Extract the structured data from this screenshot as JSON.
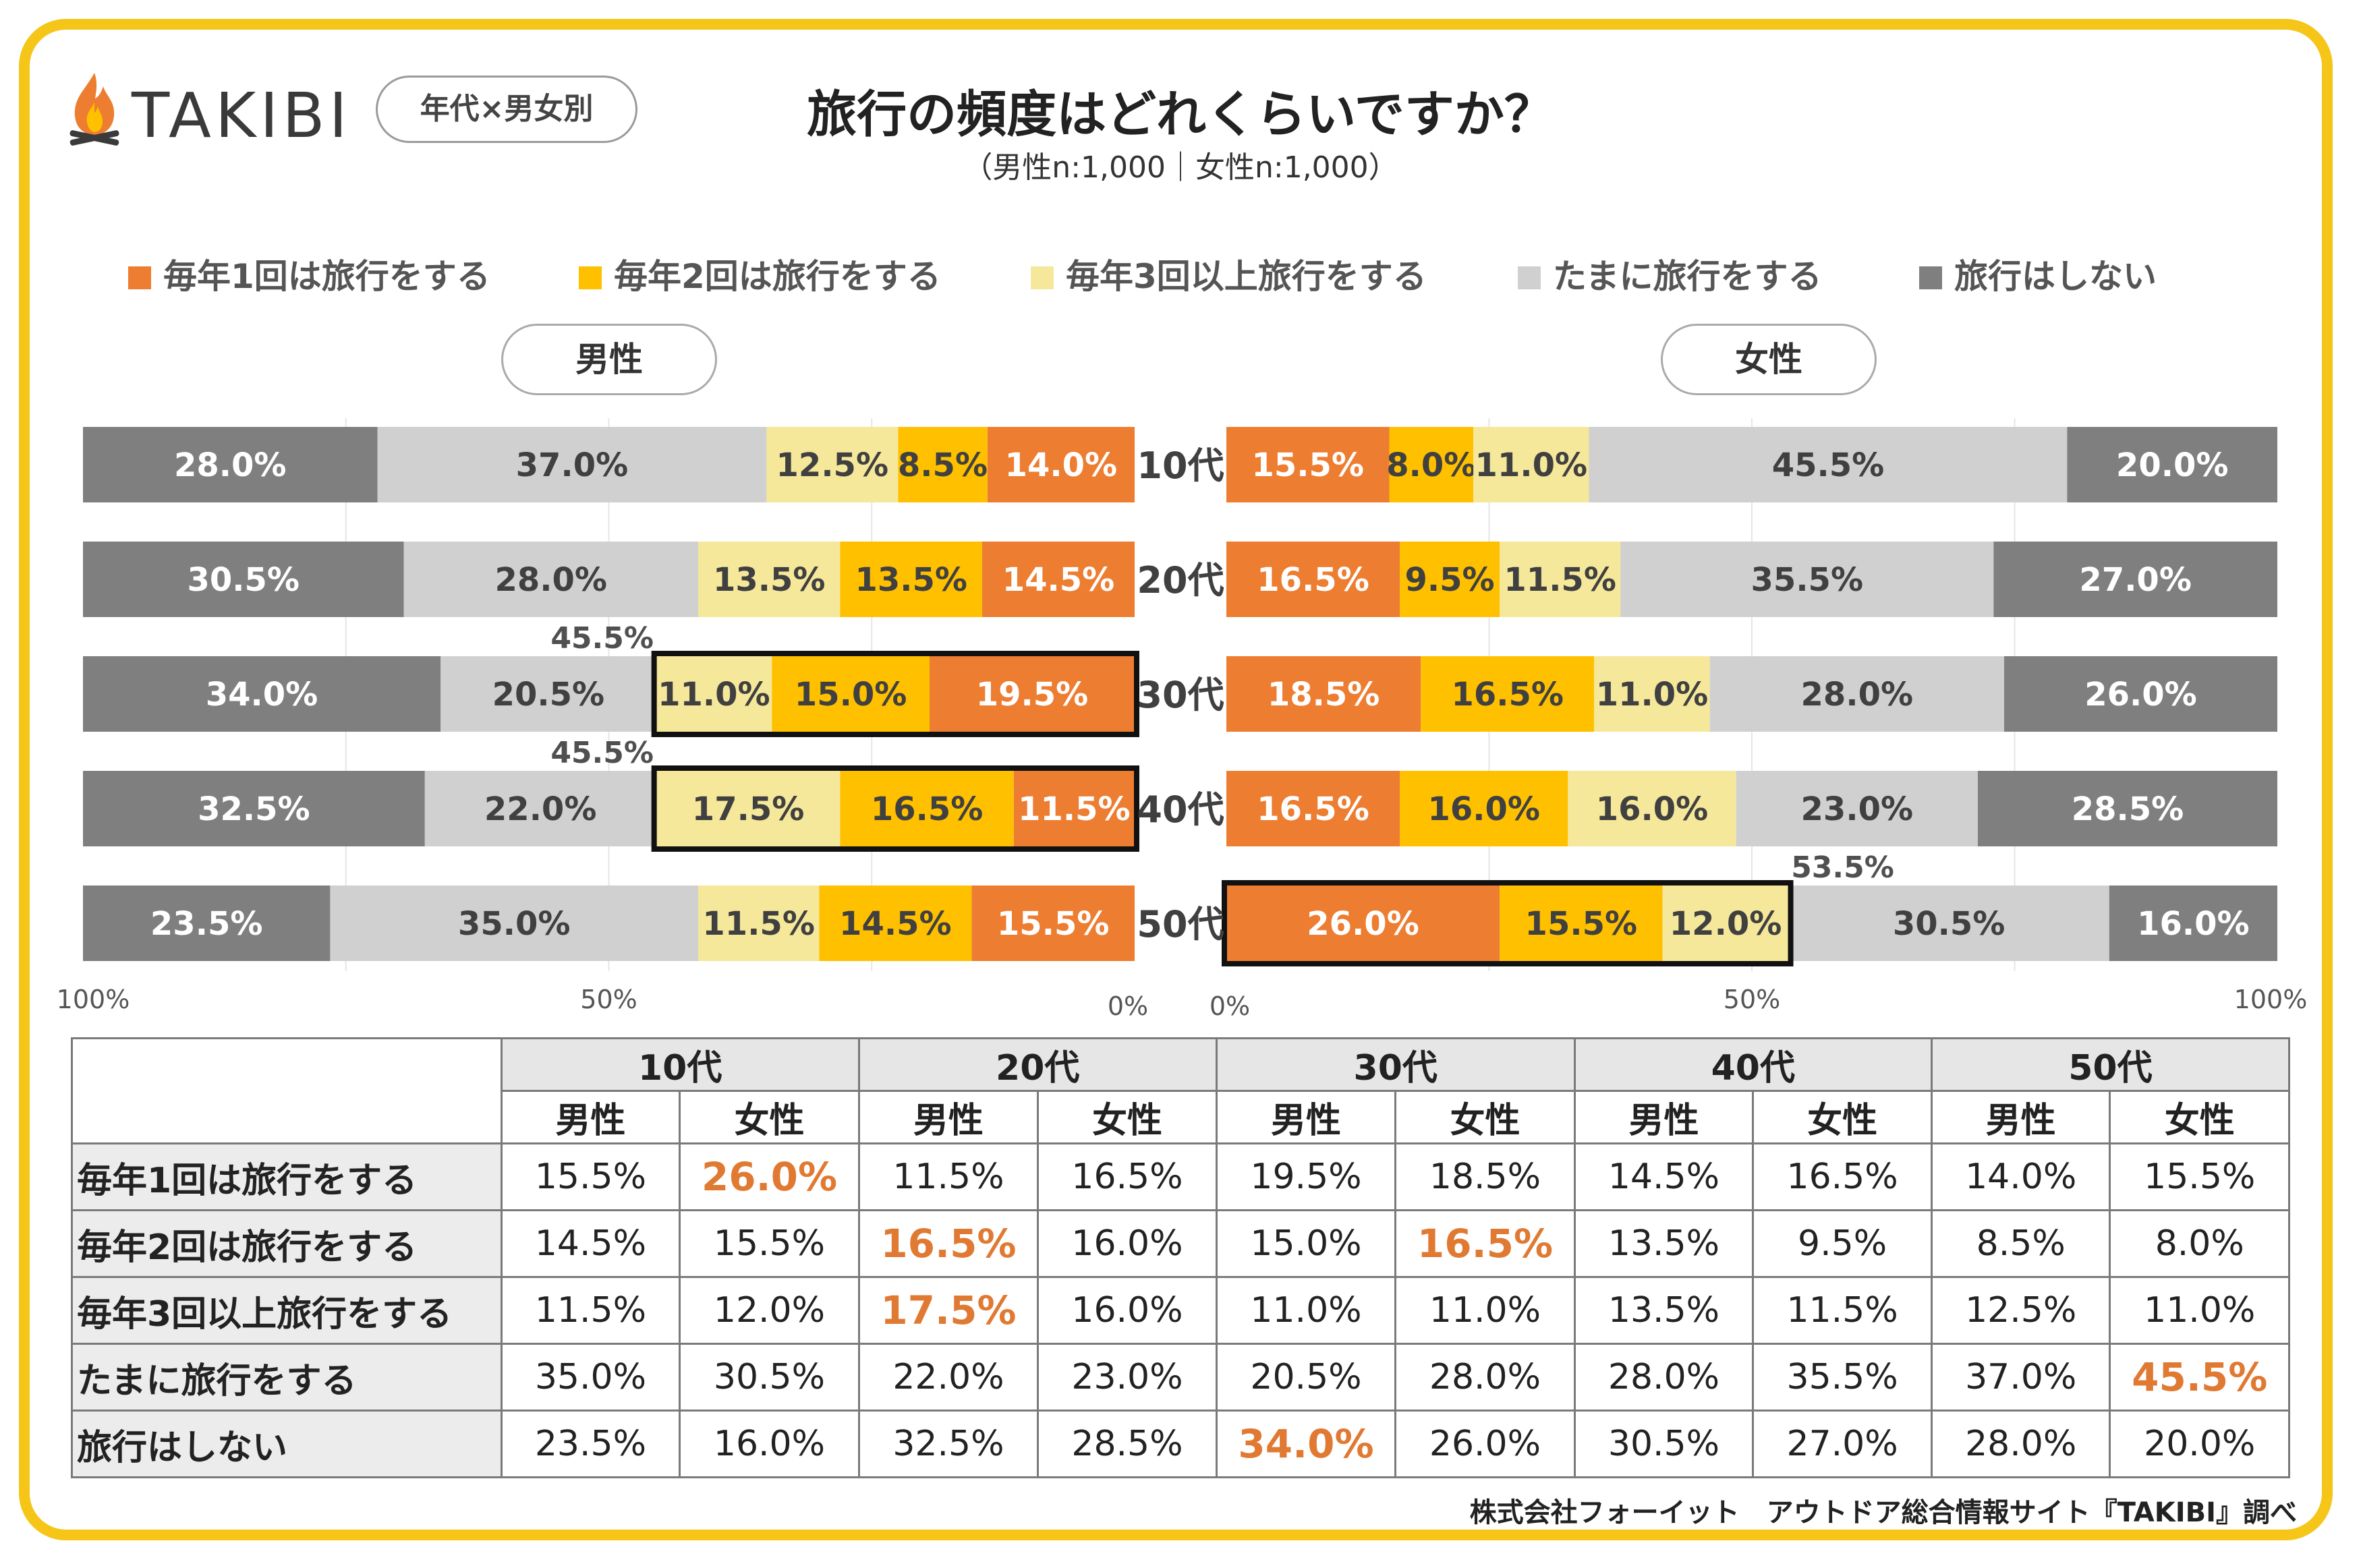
{
  "logo": {
    "text": "TAKIBI",
    "icon": "campfire-icon"
  },
  "tag": "年代×男女別",
  "title": "旅行の頻度はどれくらいですか？",
  "subtitle": "（男性n:1,000｜女性n:1,000）",
  "colors": {
    "c1": "#ED7D31",
    "c2": "#FFC000",
    "c3": "#F5E89A",
    "c4": "#D0D0D0",
    "c5": "#7F7F7F",
    "highlight_text": "#E07A33",
    "frame": "#F5C518"
  },
  "chart_data": {
    "type": "bar",
    "orientation": "horizontal-stacked-diverging",
    "title": "旅行の頻度はどれくらいですか？",
    "categories": [
      "10代",
      "20代",
      "30代",
      "40代",
      "50代"
    ],
    "legend": [
      "毎年1回は旅行をする",
      "毎年2回は旅行をする",
      "毎年3回以上旅行をする",
      "たまに旅行をする",
      "旅行はしない"
    ],
    "panels": [
      {
        "name": "男性",
        "axis_labels": [
          "100%",
          "50%",
          "0%"
        ],
        "series": [
          {
            "name": "毎年1回は旅行をする",
            "values": [
              14.0,
              14.5,
              19.5,
              11.5,
              15.5
            ]
          },
          {
            "name": "毎年2回は旅行をする",
            "values": [
              8.5,
              13.5,
              15.0,
              16.5,
              14.5
            ]
          },
          {
            "name": "毎年3回以上旅行をする",
            "values": [
              12.5,
              13.5,
              11.0,
              17.5,
              11.5
            ]
          },
          {
            "name": "たまに旅行をする",
            "values": [
              37.0,
              28.0,
              20.5,
              22.0,
              35.0
            ]
          },
          {
            "name": "旅行はしない",
            "values": [
              28.0,
              30.5,
              34.0,
              32.5,
              23.5
            ]
          }
        ],
        "highlights": [
          {
            "category": "30代",
            "label": "45.5%"
          },
          {
            "category": "40代",
            "label": "45.5%"
          }
        ]
      },
      {
        "name": "女性",
        "axis_labels": [
          "0%",
          "50%",
          "100%"
        ],
        "series": [
          {
            "name": "毎年1回は旅行をする",
            "values": [
              15.5,
              16.5,
              18.5,
              16.5,
              26.0
            ]
          },
          {
            "name": "毎年2回は旅行をする",
            "values": [
              8.0,
              9.5,
              16.5,
              16.0,
              15.5
            ]
          },
          {
            "name": "毎年3回以上旅行をする",
            "values": [
              11.0,
              11.5,
              11.0,
              16.0,
              12.0
            ]
          },
          {
            "name": "たまに旅行をする",
            "values": [
              45.5,
              35.5,
              28.0,
              23.0,
              30.5
            ]
          },
          {
            "name": "旅行はしない",
            "values": [
              20.0,
              27.0,
              26.0,
              28.5,
              16.0
            ]
          }
        ],
        "highlights": [
          {
            "category": "50代",
            "label": "53.5%"
          }
        ]
      }
    ]
  },
  "table": {
    "groups": [
      "10代",
      "20代",
      "30代",
      "40代",
      "50代"
    ],
    "sub": [
      "男性",
      "女性"
    ],
    "rows": [
      {
        "label": "毎年1回は旅行をする",
        "cells": [
          "15.5%",
          "26.0%",
          "11.5%",
          "16.5%",
          "19.5%",
          "18.5%",
          "14.5%",
          "16.5%",
          "14.0%",
          "15.5%"
        ],
        "hl": [
          1
        ]
      },
      {
        "label": "毎年2回は旅行をする",
        "cells": [
          "14.5%",
          "15.5%",
          "16.5%",
          "16.0%",
          "15.0%",
          "16.5%",
          "13.5%",
          "9.5%",
          "8.5%",
          "8.0%"
        ],
        "hl": [
          2,
          5
        ]
      },
      {
        "label": "毎年3回以上旅行をする",
        "cells": [
          "11.5%",
          "12.0%",
          "17.5%",
          "16.0%",
          "11.0%",
          "11.0%",
          "13.5%",
          "11.5%",
          "12.5%",
          "11.0%"
        ],
        "hl": [
          2
        ]
      },
      {
        "label": "たまに旅行をする",
        "cells": [
          "35.0%",
          "30.5%",
          "22.0%",
          "23.0%",
          "20.5%",
          "28.0%",
          "28.0%",
          "35.5%",
          "37.0%",
          "45.5%"
        ],
        "hl": [
          9
        ]
      },
      {
        "label": "旅行はしない",
        "cells": [
          "23.5%",
          "16.0%",
          "32.5%",
          "28.5%",
          "34.0%",
          "26.0%",
          "30.5%",
          "27.0%",
          "28.0%",
          "20.0%"
        ],
        "hl": [
          4
        ]
      }
    ]
  },
  "credit": "株式会社フォーイット　アウトドア総合情報サイト『TAKIBI』調べ"
}
